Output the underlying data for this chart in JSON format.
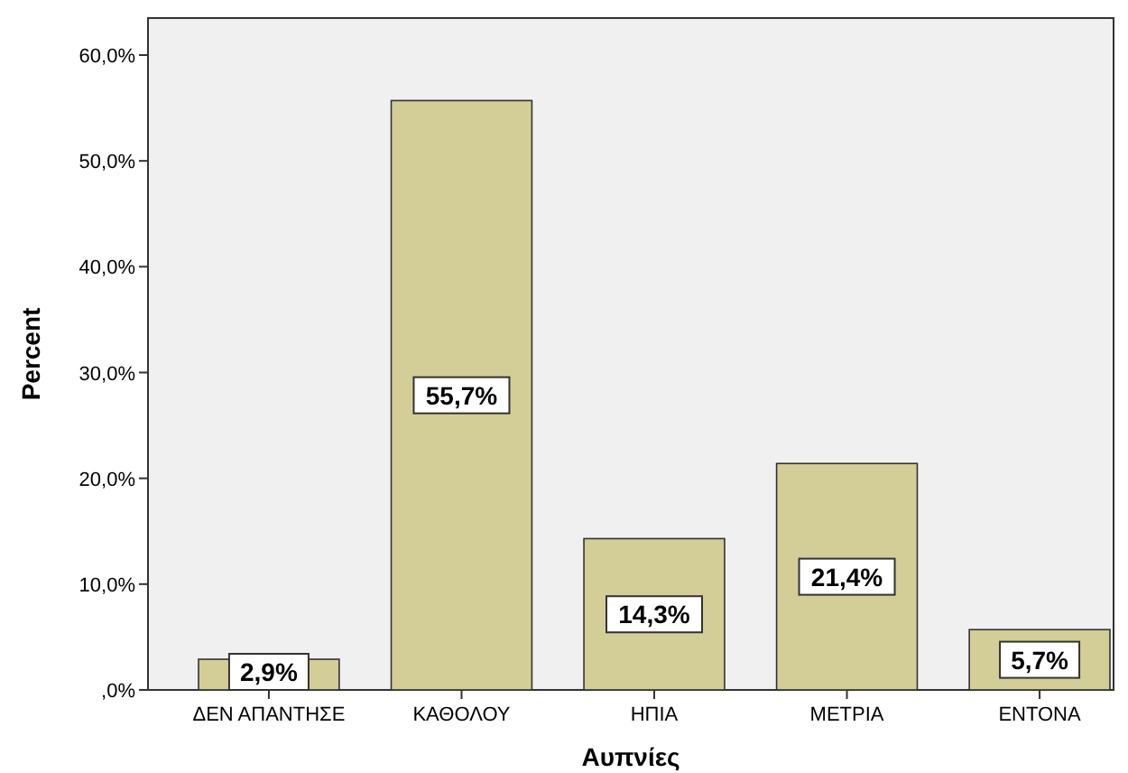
{
  "chart_data": {
    "type": "bar",
    "xlabel": "Αυπνίες",
    "ylabel": "Percent",
    "categories": [
      "ΔΕΝ ΑΠΑΝΤΗΣΕ",
      "ΚΑΘΟΛΟΥ",
      "ΗΠΙΑ",
      "ΜΕΤΡΙΑ",
      "ΕΝΤΟΝΑ"
    ],
    "values": [
      2.9,
      55.7,
      14.3,
      21.4,
      5.7
    ],
    "value_labels": [
      "2,9%",
      "55,7%",
      "14,3%",
      "21,4%",
      "5,7%"
    ],
    "color": "#d3ce97",
    "ylim": [
      0,
      63.5
    ],
    "yticks": [
      {
        "value": 0,
        "label": ",0%"
      },
      {
        "value": 10,
        "label": "10,0%"
      },
      {
        "value": 20,
        "label": "20,0%"
      },
      {
        "value": 30,
        "label": "30,0%"
      },
      {
        "value": 40,
        "label": "40,0%"
      },
      {
        "value": 50,
        "label": "50,0%"
      },
      {
        "value": 60,
        "label": "60,0%"
      }
    ],
    "grid": false
  }
}
